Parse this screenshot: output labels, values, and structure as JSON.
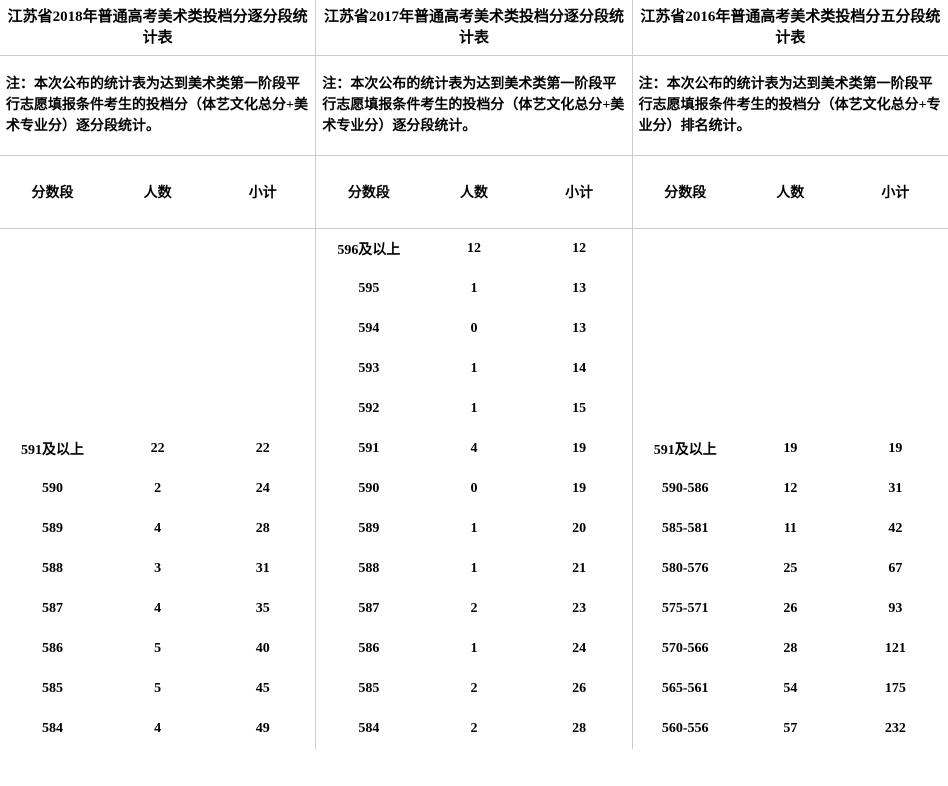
{
  "sections": [
    {
      "title": "江苏省2018年普通高考美术类投档分逐分段统计表",
      "note": "注：本次公布的统计表为达到美术类第一阶段平行志愿填报条件考生的投档分（体艺文化总分+美术专业分）逐分段统计。",
      "headers": [
        "分数段",
        "人数",
        "小计"
      ],
      "rows": [
        [
          "",
          "",
          ""
        ],
        [
          "",
          "",
          ""
        ],
        [
          "",
          "",
          ""
        ],
        [
          "",
          "",
          ""
        ],
        [
          "",
          "",
          ""
        ],
        [
          "591及以上",
          "22",
          "22"
        ],
        [
          "590",
          "2",
          "24"
        ],
        [
          "589",
          "4",
          "28"
        ],
        [
          "588",
          "3",
          "31"
        ],
        [
          "587",
          "4",
          "35"
        ],
        [
          "586",
          "5",
          "40"
        ],
        [
          "585",
          "5",
          "45"
        ],
        [
          "584",
          "4",
          "49"
        ]
      ]
    },
    {
      "title": "江苏省2017年普通高考美术类投档分逐分段统计表",
      "note": "注：本次公布的统计表为达到美术类第一阶段平行志愿填报条件考生的投档分（体艺文化总分+美术专业分）逐分段统计。",
      "headers": [
        "分数段",
        "人数",
        "小计"
      ],
      "rows": [
        [
          "596及以上",
          "12",
          "12"
        ],
        [
          "595",
          "1",
          "13"
        ],
        [
          "594",
          "0",
          "13"
        ],
        [
          "593",
          "1",
          "14"
        ],
        [
          "592",
          "1",
          "15"
        ],
        [
          "591",
          "4",
          "19"
        ],
        [
          "590",
          "0",
          "19"
        ],
        [
          "589",
          "1",
          "20"
        ],
        [
          "588",
          "1",
          "21"
        ],
        [
          "587",
          "2",
          "23"
        ],
        [
          "586",
          "1",
          "24"
        ],
        [
          "585",
          "2",
          "26"
        ],
        [
          "584",
          "2",
          "28"
        ]
      ]
    },
    {
      "title": "江苏省2016年普通高考美术类投档分五分段统计表",
      "note": "注：本次公布的统计表为达到美术类第一阶段平行志愿填报条件考生的投档分（体艺文化总分+专业分）排名统计。",
      "headers": [
        "分数段",
        "人数",
        "小计"
      ],
      "rows": [
        [
          "",
          "",
          ""
        ],
        [
          "",
          "",
          ""
        ],
        [
          "",
          "",
          ""
        ],
        [
          "",
          "",
          ""
        ],
        [
          "",
          "",
          ""
        ],
        [
          "591及以上",
          "19",
          "19"
        ],
        [
          "590-586",
          "12",
          "31"
        ],
        [
          "585-581",
          "11",
          "42"
        ],
        [
          "580-576",
          "25",
          "67"
        ],
        [
          "575-571",
          "26",
          "93"
        ],
        [
          "570-566",
          "28",
          "121"
        ],
        [
          "565-561",
          "54",
          "175"
        ],
        [
          "560-556",
          "57",
          "232"
        ]
      ]
    }
  ]
}
